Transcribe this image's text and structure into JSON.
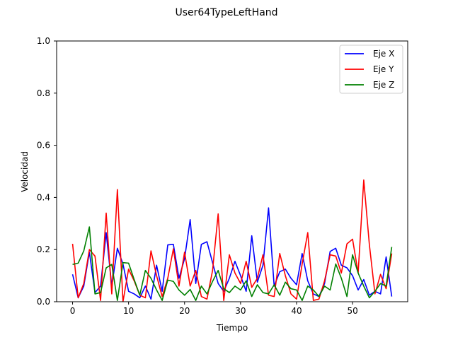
{
  "chart_data": {
    "type": "line",
    "title": "User64TypeLeftHand",
    "xlabel": "Tiempo",
    "ylabel": "Velocidad",
    "xlim": [
      -2.85,
      59.85
    ],
    "ylim": [
      0.0,
      1.0
    ],
    "xticks": [
      0,
      10,
      20,
      30,
      40,
      50
    ],
    "yticks": [
      0.0,
      0.2,
      0.4,
      0.6,
      0.8,
      1.0
    ],
    "grid": false,
    "legend_position": "top-right",
    "x": [
      0,
      1,
      2,
      3,
      4,
      5,
      6,
      7,
      8,
      9,
      10,
      11,
      12,
      13,
      14,
      15,
      16,
      17,
      18,
      19,
      20,
      21,
      22,
      23,
      24,
      25,
      26,
      27,
      28,
      29,
      30,
      31,
      32,
      33,
      34,
      35,
      36,
      37,
      38,
      39,
      40,
      41,
      42,
      43,
      44,
      45,
      46,
      47,
      48,
      49,
      50,
      51,
      52,
      53,
      54,
      55,
      56,
      57
    ],
    "series": [
      {
        "name": "Eje X",
        "color": "#0000ff",
        "values": [
          0.105,
          0.015,
          0.06,
          0.19,
          0.035,
          0.06,
          0.265,
          0.06,
          0.205,
          0.145,
          0.04,
          0.03,
          0.015,
          0.06,
          0.01,
          0.14,
          0.04,
          0.218,
          0.22,
          0.09,
          0.165,
          0.315,
          0.07,
          0.22,
          0.23,
          0.15,
          0.07,
          0.04,
          0.09,
          0.155,
          0.1,
          0.04,
          0.253,
          0.075,
          0.14,
          0.36,
          0.06,
          0.115,
          0.125,
          0.09,
          0.065,
          0.185,
          0.08,
          0.03,
          0.02,
          0.07,
          0.193,
          0.205,
          0.14,
          0.13,
          0.1,
          0.045,
          0.085,
          0.025,
          0.04,
          0.03,
          0.172,
          0.02
        ]
      },
      {
        "name": "Eje Y",
        "color": "#ff0000",
        "values": [
          0.222,
          0.015,
          0.07,
          0.2,
          0.175,
          0.005,
          0.34,
          0.03,
          0.43,
          0.0,
          0.125,
          0.08,
          0.025,
          0.015,
          0.195,
          0.1,
          0.02,
          0.09,
          0.203,
          0.06,
          0.19,
          0.06,
          0.12,
          0.02,
          0.01,
          0.12,
          0.337,
          0.005,
          0.18,
          0.11,
          0.07,
          0.155,
          0.055,
          0.09,
          0.18,
          0.025,
          0.02,
          0.185,
          0.1,
          0.03,
          0.01,
          0.145,
          0.265,
          0.005,
          0.01,
          0.08,
          0.18,
          0.175,
          0.11,
          0.222,
          0.24,
          0.11,
          0.467,
          0.22,
          0.03,
          0.105,
          0.05,
          0.185
        ]
      },
      {
        "name": "Eje Z",
        "color": "#008000",
        "values": [
          0.143,
          0.148,
          0.195,
          0.287,
          0.03,
          0.035,
          0.13,
          0.143,
          0.005,
          0.15,
          0.148,
          0.085,
          0.025,
          0.12,
          0.09,
          0.045,
          0.005,
          0.083,
          0.078,
          0.045,
          0.025,
          0.047,
          0.005,
          0.06,
          0.03,
          0.078,
          0.12,
          0.05,
          0.035,
          0.06,
          0.045,
          0.08,
          0.02,
          0.065,
          0.035,
          0.03,
          0.065,
          0.025,
          0.075,
          0.05,
          0.045,
          0.005,
          0.06,
          0.045,
          0.02,
          0.06,
          0.045,
          0.145,
          0.09,
          0.02,
          0.18,
          0.11,
          0.06,
          0.015,
          0.04,
          0.07,
          0.06,
          0.21
        ]
      }
    ]
  }
}
